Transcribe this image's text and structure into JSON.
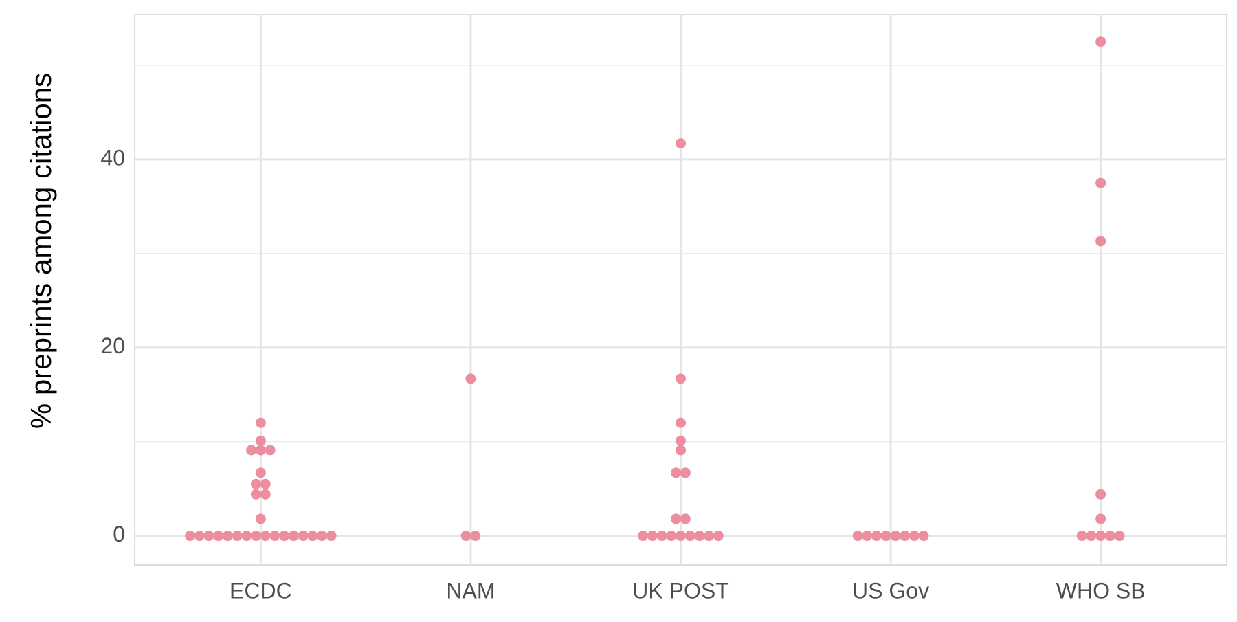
{
  "chart_data": {
    "type": "beeswarm",
    "y_label": "% preprints among citations",
    "categories": [
      "ECDC",
      "NAM",
      "UK POST",
      "US Gov",
      "WHO SB"
    ],
    "values": [
      [
        0,
        0,
        0,
        0,
        0,
        0,
        0,
        0,
        0,
        0,
        0,
        0,
        0,
        0,
        0,
        0,
        1.8,
        4.4,
        4.4,
        5.5,
        5.5,
        6.7,
        9.1,
        9.1,
        9.1,
        10.1,
        12
      ],
      [
        0,
        0,
        16.7
      ],
      [
        0,
        0,
        0,
        0,
        0,
        0,
        0,
        0,
        0,
        1.8,
        1.8,
        6.7,
        6.7,
        9.1,
        10.1,
        12,
        16.7,
        41.7
      ],
      [
        0,
        0,
        0,
        0,
        0,
        0,
        0,
        0
      ],
      [
        0,
        0,
        0,
        0,
        0,
        1.8,
        4.4,
        31.3,
        37.5,
        52.5
      ]
    ],
    "color": "#ec8ea0",
    "ylim": [
      -3.1,
      55.4
    ],
    "yticks": [
      0,
      20,
      40
    ],
    "yticks_minor": [
      10,
      30,
      50
    ],
    "grid": true
  }
}
